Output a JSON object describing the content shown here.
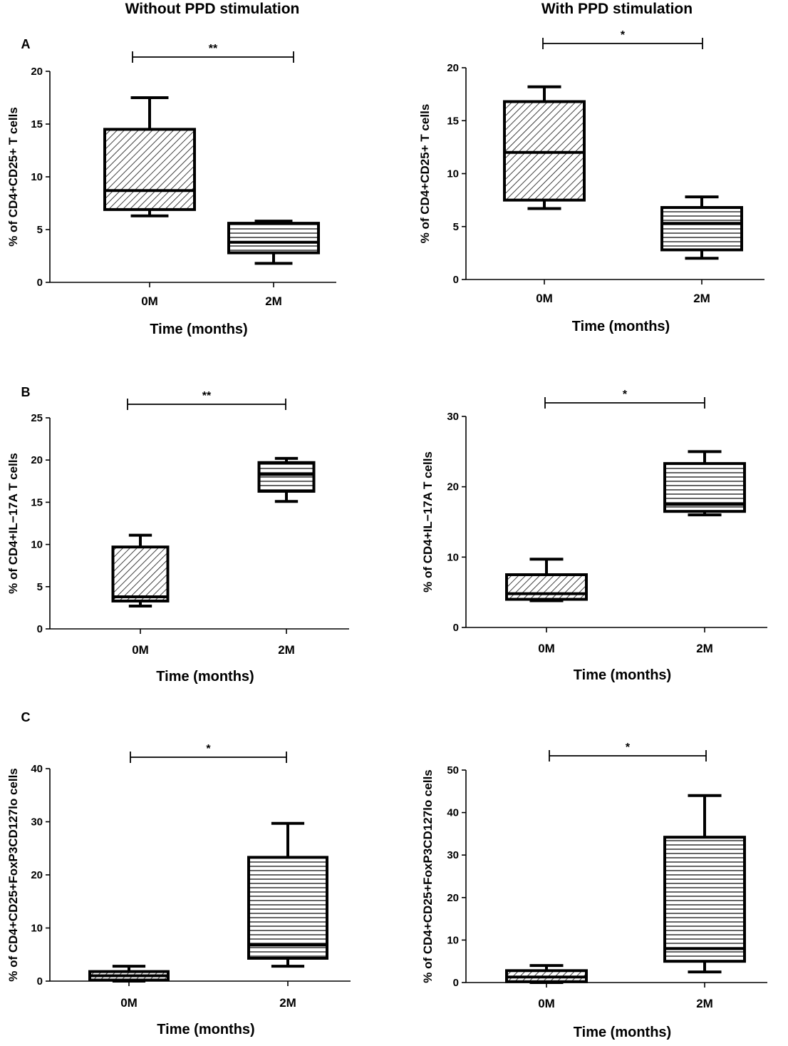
{
  "column_titles": [
    "Without PPD stimulation",
    "With PPD stimulation"
  ],
  "chart_data": [
    {
      "type": "box",
      "panel": "A",
      "title": "Without PPD stimulation",
      "ylabel": "% of CD4+CD25+ T cells",
      "xlabel": "Time (months)",
      "categories": [
        "0M",
        "2M"
      ],
      "ylim": [
        0,
        20
      ],
      "yticks": [
        0,
        5,
        10,
        15,
        20
      ],
      "boxes": [
        {
          "category": "0M",
          "min": 6.3,
          "q1": 6.9,
          "median": 8.7,
          "q3": 14.5,
          "max": 17.5,
          "hatch": "diagonal"
        },
        {
          "category": "2M",
          "min": 1.8,
          "q1": 2.8,
          "median": 3.8,
          "q3": 5.6,
          "max": 5.8,
          "hatch": "horizontal"
        }
      ],
      "significance": "**"
    },
    {
      "type": "box",
      "panel": "",
      "title": "With PPD stimulation",
      "ylabel": "% of CD4+CD25+ T cells",
      "xlabel": "Time (months)",
      "categories": [
        "0M",
        "2M"
      ],
      "ylim": [
        0,
        20
      ],
      "yticks": [
        0,
        5,
        10,
        15,
        20
      ],
      "boxes": [
        {
          "category": "0M",
          "min": 6.7,
          "q1": 7.5,
          "median": 12.0,
          "q3": 16.8,
          "max": 18.2,
          "hatch": "diagonal"
        },
        {
          "category": "2M",
          "min": 2.0,
          "q1": 2.8,
          "median": 5.3,
          "q3": 6.8,
          "max": 7.8,
          "hatch": "horizontal"
        }
      ],
      "significance": "*"
    },
    {
      "type": "box",
      "panel": "B",
      "title": "Without PPD stimulation",
      "ylabel": "% of CD4+IL−17A T cells",
      "xlabel": "Time (months)",
      "categories": [
        "0M",
        "2M"
      ],
      "ylim": [
        0,
        25
      ],
      "yticks": [
        0,
        5,
        10,
        15,
        20,
        25
      ],
      "boxes": [
        {
          "category": "0M",
          "min": 2.7,
          "q1": 3.3,
          "median": 3.8,
          "q3": 9.7,
          "max": 11.1,
          "hatch": "diagonal"
        },
        {
          "category": "2M",
          "min": 15.1,
          "q1": 16.3,
          "median": 18.3,
          "q3": 19.7,
          "max": 20.2,
          "hatch": "horizontal"
        }
      ],
      "significance": "**"
    },
    {
      "type": "box",
      "panel": "",
      "title": "With PPD stimulation",
      "ylabel": "% of CD4+IL−17A T cells",
      "xlabel": "Time (months)",
      "categories": [
        "0M",
        "2M"
      ],
      "ylim": [
        0,
        30
      ],
      "yticks": [
        0,
        10,
        20,
        30
      ],
      "boxes": [
        {
          "category": "0M",
          "min": 3.8,
          "q1": 4.0,
          "median": 4.8,
          "q3": 7.5,
          "max": 9.7,
          "hatch": "diagonal"
        },
        {
          "category": "2M",
          "min": 16.0,
          "q1": 16.5,
          "median": 17.5,
          "q3": 23.3,
          "max": 25.0,
          "hatch": "horizontal"
        }
      ],
      "significance": "*"
    },
    {
      "type": "box",
      "panel": "C",
      "title": "Without PPD stimulation",
      "ylabel": "% of CD4+CD25+FoxP3CD127lo cells",
      "xlabel": "Time (months)",
      "categories": [
        "0M",
        "2M"
      ],
      "ylim": [
        0,
        40
      ],
      "yticks": [
        0,
        10,
        20,
        30,
        40
      ],
      "boxes": [
        {
          "category": "0M",
          "min": 0.0,
          "q1": 0.2,
          "median": 1.0,
          "q3": 1.8,
          "max": 2.8,
          "hatch": "diagonal"
        },
        {
          "category": "2M",
          "min": 2.8,
          "q1": 4.3,
          "median": 6.8,
          "q3": 23.3,
          "max": 29.7,
          "hatch": "horizontal"
        }
      ],
      "significance": "*"
    },
    {
      "type": "box",
      "panel": "",
      "title": "With PPD stimulation",
      "ylabel": "% of CD4+CD25+FoxP3CD127lo cells",
      "xlabel": "Time (months)",
      "categories": [
        "0M",
        "2M"
      ],
      "ylim": [
        0,
        50
      ],
      "yticks": [
        0,
        10,
        20,
        30,
        40,
        50
      ],
      "boxes": [
        {
          "category": "0M",
          "min": 0.0,
          "q1": 0.2,
          "median": 1.3,
          "q3": 2.8,
          "max": 4.0,
          "hatch": "diagonal"
        },
        {
          "category": "2M",
          "min": 2.5,
          "q1": 5.0,
          "median": 8.0,
          "q3": 34.2,
          "max": 44.0,
          "hatch": "horizontal"
        }
      ],
      "significance": "*"
    }
  ]
}
